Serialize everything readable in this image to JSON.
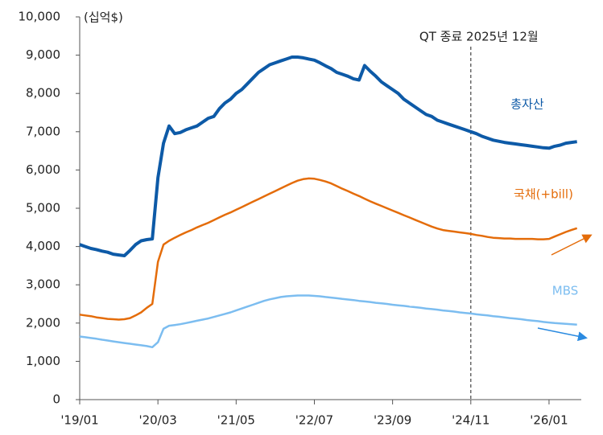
{
  "chart_data": {
    "type": "line",
    "unit_label": "(십억$)",
    "annotation": {
      "text": "QT 종료 2025년 12월",
      "x": "'24/11"
    },
    "x": [
      "'19/01",
      "'19/02",
      "'19/03",
      "'19/04",
      "'19/05",
      "'19/06",
      "'19/07",
      "'19/08",
      "'19/09",
      "'19/10",
      "'19/11",
      "'19/12",
      "'20/01",
      "'20/02",
      "'20/03",
      "'20/04",
      "'20/05",
      "'20/06",
      "'20/07",
      "'20/08",
      "'20/09",
      "'20/10",
      "'20/11",
      "'20/12",
      "'21/01",
      "'21/02",
      "'21/03",
      "'21/04",
      "'21/05",
      "'21/06",
      "'21/07",
      "'21/08",
      "'21/09",
      "'21/10",
      "'21/11",
      "'21/12",
      "'22/01",
      "'22/02",
      "'22/03",
      "'22/04",
      "'22/05",
      "'22/06",
      "'22/07",
      "'22/08",
      "'22/09",
      "'22/10",
      "'22/11",
      "'22/12",
      "'23/01",
      "'23/02",
      "'23/03",
      "'23/04",
      "'23/05",
      "'23/06",
      "'23/07",
      "'23/08",
      "'23/09",
      "'23/10",
      "'23/11",
      "'23/12",
      "'24/01",
      "'24/02",
      "'24/03",
      "'24/04",
      "'24/05",
      "'24/06",
      "'24/07",
      "'24/08",
      "'24/09",
      "'24/10",
      "'24/11",
      "'24/12",
      "'25/01",
      "'25/02",
      "'25/03",
      "'25/04",
      "'25/05",
      "'25/06",
      "'25/07",
      "'25/08",
      "'25/09",
      "'25/10",
      "'25/11",
      "'25/12",
      "'26/01",
      "'26/02",
      "'26/03",
      "'26/04",
      "'26/05",
      "'26/06"
    ],
    "xticks": [
      "'19/01",
      "'20/03",
      "'21/05",
      "'22/07",
      "'23/09",
      "'24/11",
      "'26/01"
    ],
    "ylim": [
      0,
      10000
    ],
    "yticks": [
      0,
      {
        "value": 1000,
        "label": "1,000"
      },
      {
        "value": 2000,
        "label": "2,000"
      },
      {
        "value": 3000,
        "label": "3,000"
      },
      {
        "value": 4000,
        "label": "4,000"
      },
      {
        "value": 5000,
        "label": "5,000"
      },
      {
        "value": 6000,
        "label": "6,000"
      },
      {
        "value": 7000,
        "label": "7,000"
      },
      {
        "value": 8000,
        "label": "8,000"
      },
      {
        "value": 9000,
        "label": "9,000"
      },
      {
        "value": 10000,
        "label": "10,000"
      }
    ],
    "series": [
      {
        "name": "총자산",
        "color": "#0d5aa7",
        "values": [
          4050,
          4000,
          3950,
          3920,
          3880,
          3850,
          3800,
          3780,
          3760,
          3900,
          4050,
          4150,
          4180,
          4200,
          5800,
          6700,
          7150,
          6950,
          6980,
          7050,
          7100,
          7150,
          7250,
          7350,
          7400,
          7600,
          7750,
          7850,
          8000,
          8100,
          8250,
          8400,
          8550,
          8650,
          8750,
          8800,
          8850,
          8900,
          8950,
          8950,
          8930,
          8900,
          8870,
          8800,
          8720,
          8650,
          8550,
          8500,
          8450,
          8380,
          8350,
          8730,
          8580,
          8450,
          8300,
          8200,
          8100,
          8000,
          7850,
          7750,
          7650,
          7550,
          7450,
          7400,
          7300,
          7250,
          7200,
          7150,
          7100,
          7050,
          7000,
          6950,
          6880,
          6830,
          6780,
          6750,
          6720,
          6700,
          6680,
          6660,
          6640,
          6620,
          6600,
          6580,
          6570,
          6620,
          6650,
          6700,
          6720,
          6740
        ]
      },
      {
        "name": "국채(+bill)",
        "color": "#e46c0a",
        "values": [
          2220,
          2200,
          2180,
          2150,
          2130,
          2110,
          2100,
          2090,
          2100,
          2130,
          2200,
          2280,
          2400,
          2500,
          3600,
          4050,
          4150,
          4230,
          4300,
          4370,
          4430,
          4500,
          4560,
          4620,
          4690,
          4760,
          4830,
          4890,
          4960,
          5030,
          5100,
          5170,
          5240,
          5310,
          5380,
          5450,
          5520,
          5590,
          5660,
          5720,
          5760,
          5780,
          5770,
          5740,
          5700,
          5650,
          5580,
          5510,
          5450,
          5380,
          5320,
          5250,
          5180,
          5120,
          5060,
          5000,
          4940,
          4880,
          4820,
          4760,
          4700,
          4640,
          4580,
          4520,
          4470,
          4430,
          4410,
          4390,
          4370,
          4350,
          4330,
          4300,
          4280,
          4250,
          4230,
          4220,
          4210,
          4210,
          4200,
          4200,
          4200,
          4200,
          4190,
          4190,
          4200,
          4260,
          4320,
          4380,
          4430,
          4480
        ]
      },
      {
        "name": "MBS",
        "color": "#7cbdf0",
        "values": [
          1650,
          1630,
          1610,
          1590,
          1565,
          1545,
          1520,
          1500,
          1480,
          1460,
          1440,
          1420,
          1400,
          1370,
          1500,
          1850,
          1930,
          1950,
          1970,
          2000,
          2030,
          2060,
          2090,
          2120,
          2160,
          2200,
          2240,
          2280,
          2330,
          2380,
          2430,
          2480,
          2530,
          2580,
          2620,
          2650,
          2680,
          2700,
          2710,
          2720,
          2720,
          2720,
          2710,
          2700,
          2680,
          2665,
          2650,
          2630,
          2615,
          2600,
          2580,
          2565,
          2550,
          2530,
          2515,
          2500,
          2480,
          2465,
          2450,
          2430,
          2415,
          2400,
          2380,
          2365,
          2350,
          2330,
          2315,
          2300,
          2280,
          2265,
          2250,
          2230,
          2215,
          2200,
          2180,
          2165,
          2150,
          2130,
          2115,
          2100,
          2080,
          2065,
          2050,
          2030,
          2015,
          2000,
          1990,
          1980,
          1970,
          1960
        ]
      }
    ]
  }
}
